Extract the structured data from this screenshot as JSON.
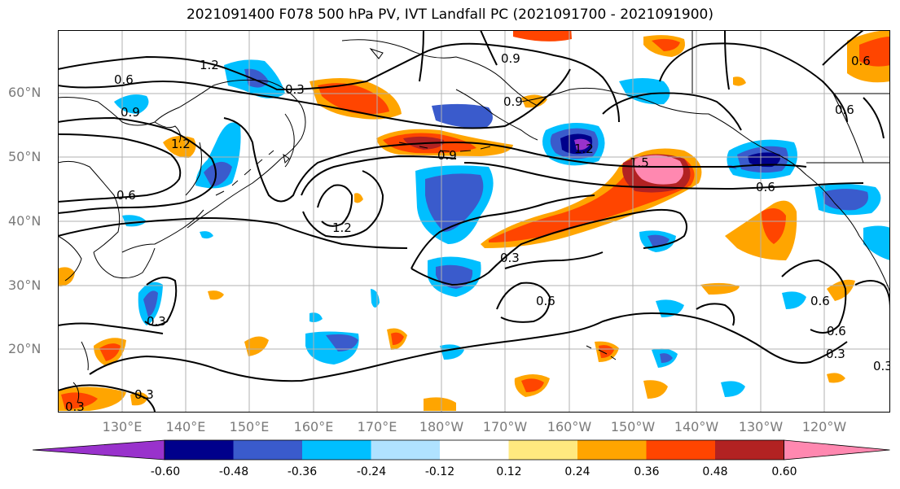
{
  "title": "2021091400 F078 500 hPa PV, IVT Landfall PC (2021091700 - 2021091900)",
  "lat_labels": [
    "60°N",
    "50°N",
    "40°N",
    "30°N",
    "20°N"
  ],
  "lon_labels": [
    "130°E",
    "140°E",
    "150°E",
    "160°E",
    "170°E",
    "180°W",
    "170°W",
    "160°W",
    "150°W",
    "140°W",
    "130°W",
    "120°W"
  ],
  "contour_labels": [
    "0.6",
    "0.3",
    "0.9",
    "1.2",
    "0.9",
    "1.2",
    "1.5",
    "0.6",
    "0.6",
    "1.2",
    "0.3",
    "0.6",
    "0.6",
    "0.3",
    "0.3",
    "0.3",
    "0.3",
    "0.6",
    "0.9",
    "0.9",
    "0.6",
    "0.3",
    "0.6",
    "1.2"
  ],
  "colorbar": {
    "tick_labels": [
      "-0.60",
      "-0.48",
      "-0.36",
      "-0.24",
      "-0.12",
      "0.12",
      "0.24",
      "0.36",
      "0.48",
      "0.60"
    ],
    "colors": [
      "#9932cc",
      "#00008b",
      "#3a5bcc",
      "#00bfff",
      "#b0e2ff",
      "#ffffff",
      "#ffe97f",
      "#ffa500",
      "#ff4500",
      "#b22222",
      "#ff88b0"
    ]
  },
  "map_region": "North Pacific",
  "colors": {
    "contour": "#000000",
    "coast": "#000000",
    "grid": "#b0b0b0",
    "axis_label": "#7a7a7a"
  }
}
